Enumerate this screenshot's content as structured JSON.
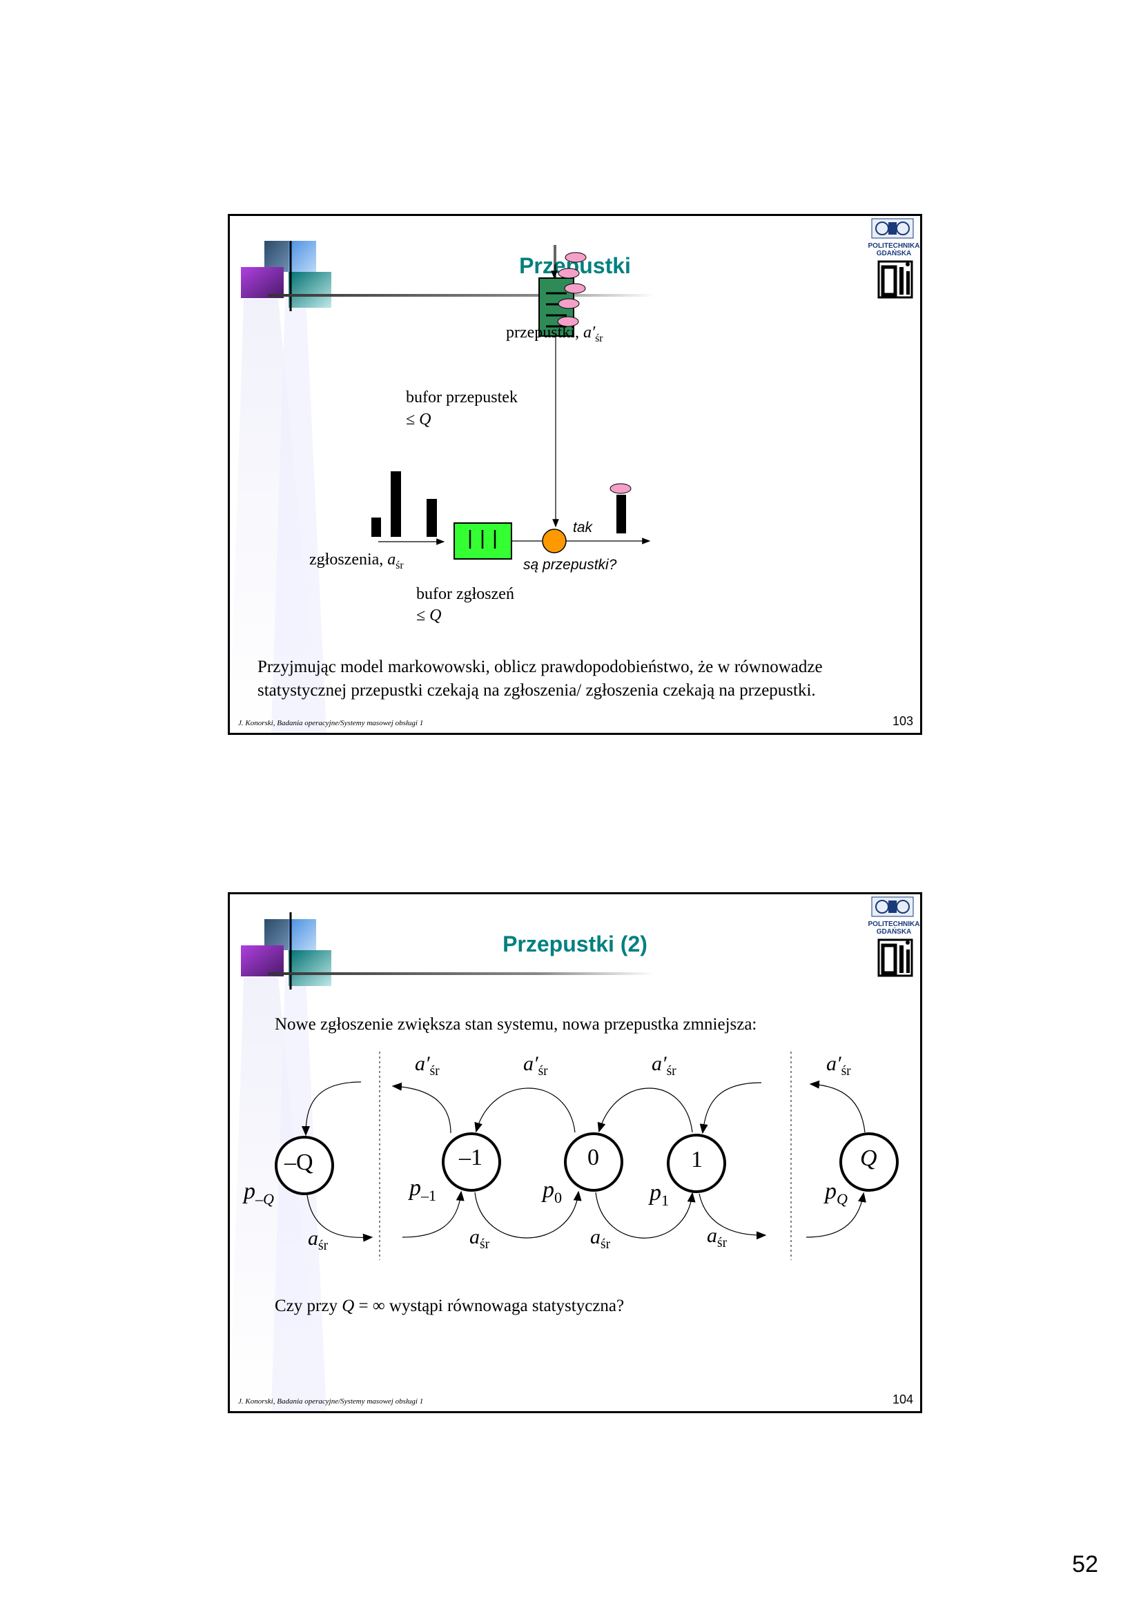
{
  "page_number": "52",
  "slides": [
    {
      "title": "Przepustki",
      "slide_number": "103",
      "footer": "J. Konorski, Badania operacyjne/Systemy masowej obsługi 1",
      "logo": {
        "line1": "POLITECHNIKA",
        "line2": "GDAŃSKA",
        "mark": "ETI"
      },
      "labels": {
        "tokens": "przepustki, ",
        "tokens_var": "a′",
        "tokens_sub": "śr",
        "token_buffer": "bufor przepustek",
        "token_buffer_limit": "≤ Q",
        "requests": "zgłoszenia, ",
        "requests_var": "a",
        "requests_sub": "śr",
        "yes": "tak",
        "question": "są przepustki?",
        "request_buffer": "bufor zgłoszeń",
        "request_buffer_limit": "≤ Q"
      },
      "text": "Przyjmując model markowowski, oblicz prawdopodobieństwo, że w równowadze statystycznej przepustki czekają na zgłoszenia/ zgłoszenia czekają na przepustki.",
      "colors": {
        "title": "#008080",
        "token": "#f4a0c8",
        "token_buffer": "#2e8b57",
        "request_buffer": "#33ff33",
        "gate": "#ff9900"
      }
    },
    {
      "title": "Przepustki (2)",
      "slide_number": "104",
      "footer": "J. Konorski, Badania operacyjne/Systemy masowej obsługi 1",
      "logo": {
        "line1": "POLITECHNIKA",
        "line2": "GDAŃSKA",
        "mark": "ETI"
      },
      "intro": "Nowe zgłoszenie zwiększa stan systemu, nowa przepustka zmniejsza:",
      "states": [
        {
          "label": "–Q",
          "prob": "p",
          "prob_sub": "–Q"
        },
        {
          "label": "–1",
          "prob": "p",
          "prob_sub": "–1"
        },
        {
          "label": "0",
          "prob": "p",
          "prob_sub": "0"
        },
        {
          "label": "1",
          "prob": "p",
          "prob_sub": "1"
        },
        {
          "label": "Q",
          "prob": "p",
          "prob_sub": "Q"
        }
      ],
      "rate_token": {
        "var": "a′",
        "sub": "śr"
      },
      "rate_request": {
        "var": "a",
        "sub": "śr"
      },
      "question_pre": "Czy przy ",
      "question_var": "Q",
      "question_post": " = ∞ wystąpi równowaga statystyczna?"
    }
  ]
}
